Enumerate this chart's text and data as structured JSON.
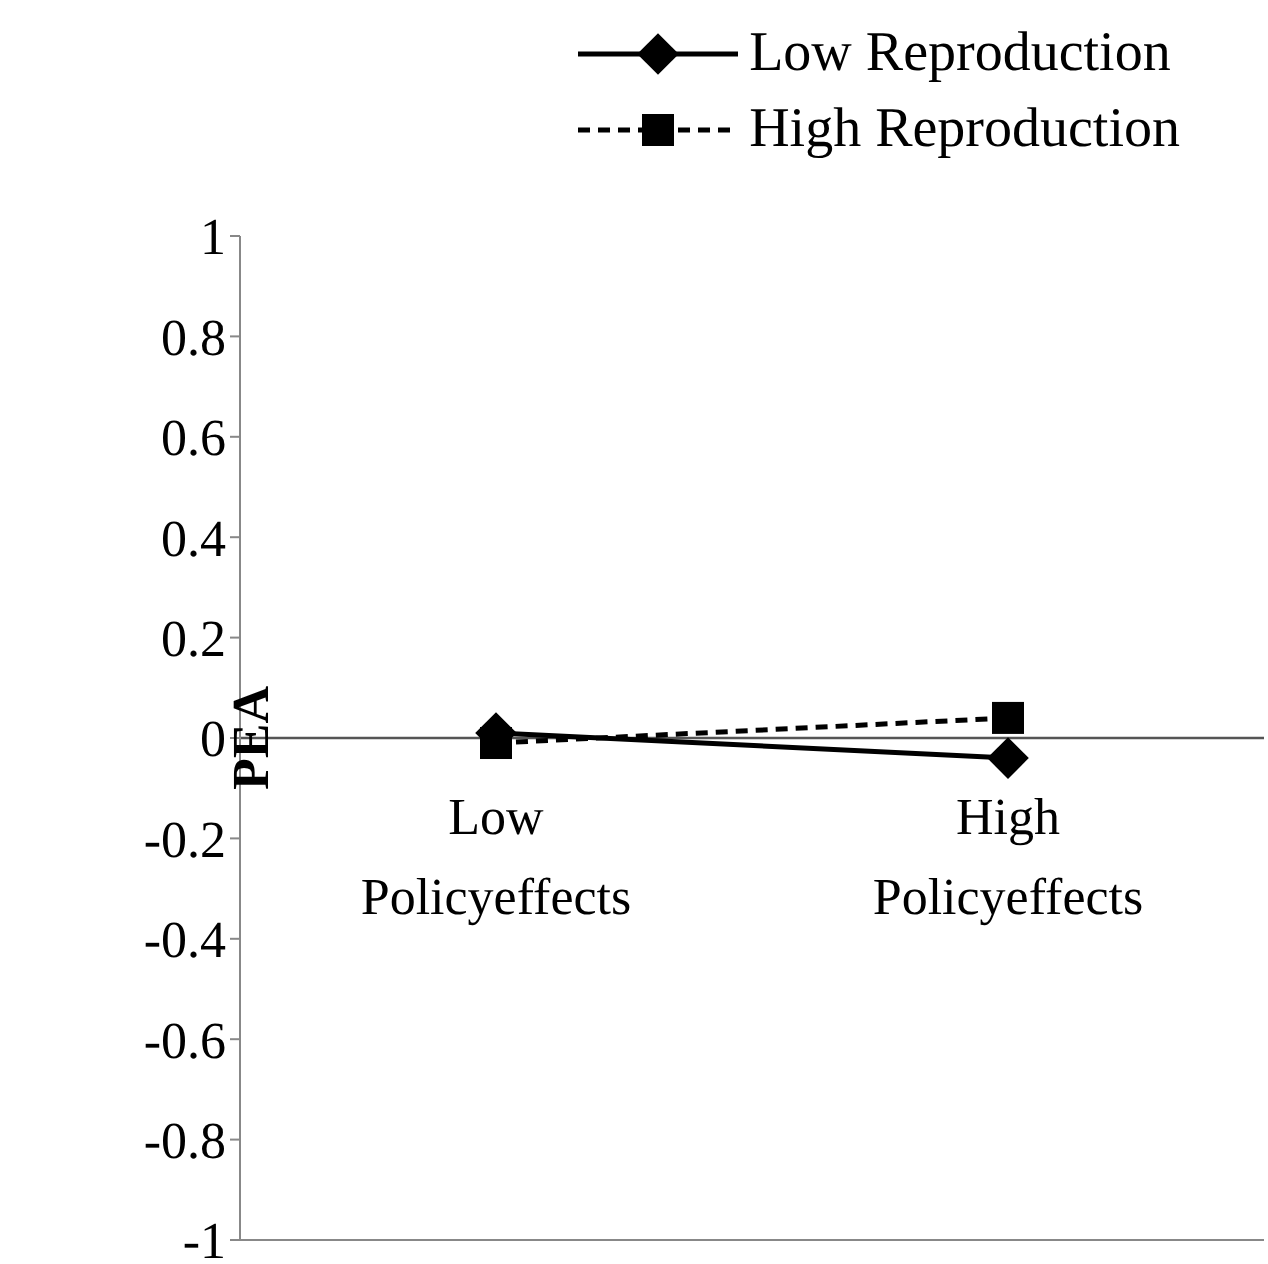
{
  "chart_data": {
    "type": "line",
    "ylabel": "PEA",
    "categories": [
      "Low Policyeffects",
      "High Policyeffects"
    ],
    "series": [
      {
        "name": "Low Reproduction",
        "color": "#000000",
        "values": [
          0.01,
          -0.04
        ],
        "marker": "diamond",
        "line_style": "solid"
      },
      {
        "name": "High Reproduction",
        "color": "#000000",
        "values": [
          -0.01,
          0.04
        ],
        "marker": "square",
        "line_style": "dashed"
      }
    ],
    "ylim": [
      -1,
      1
    ],
    "yticks": [
      -1,
      -0.8,
      -0.6,
      -0.4,
      -0.2,
      0,
      0.2,
      0.4,
      0.6,
      0.8,
      1
    ],
    "grid": false,
    "legend": "top right"
  }
}
